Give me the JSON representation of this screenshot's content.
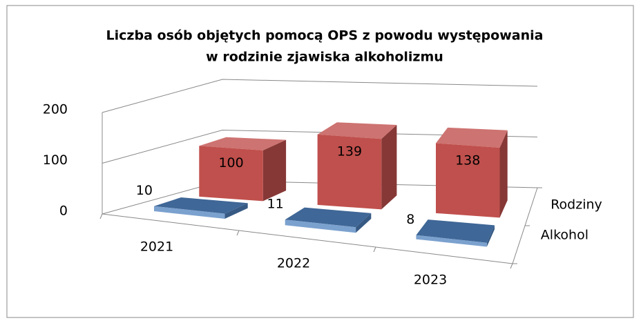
{
  "chart_data": {
    "type": "bar3d",
    "title": "Liczba osób objętych pomocą OPS z powodu występowania",
    "subtitle": "w rodzinie zjawiska alkoholizmu",
    "categories": [
      "2021",
      "2022",
      "2023"
    ],
    "series": [
      {
        "name": "Alkohol",
        "color": "#4f81bd",
        "values": [
          10,
          11,
          8
        ]
      },
      {
        "name": "Rodziny",
        "color": "#c0504d",
        "values": [
          100,
          139,
          138
        ]
      }
    ],
    "ylim": [
      0,
      200
    ],
    "yticks": [
      0,
      100,
      200
    ],
    "grid": true
  }
}
